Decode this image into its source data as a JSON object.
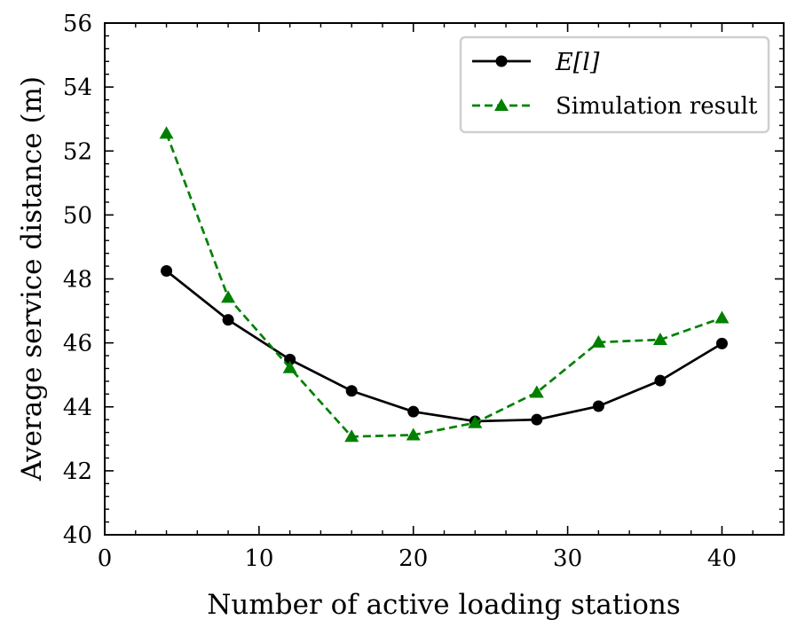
{
  "chart_data": {
    "type": "line",
    "title": "",
    "xlabel": "Number of active loading stations",
    "ylabel": "Average service distance (m)",
    "xlim": [
      0,
      44
    ],
    "ylim": [
      40,
      56
    ],
    "x_ticks": [
      0,
      10,
      20,
      30,
      40
    ],
    "y_ticks": [
      40,
      42,
      44,
      46,
      48,
      50,
      52,
      54,
      56
    ],
    "x_tick_labels": [
      "0",
      "10",
      "20",
      "30",
      "40"
    ],
    "y_tick_labels": [
      "40",
      "42",
      "44",
      "46",
      "48",
      "50",
      "52",
      "54",
      "56"
    ],
    "x_minor_step": 2,
    "y_minor_step": 0.4,
    "grid": false,
    "legend_position": "top-right",
    "x": [
      4,
      8,
      12,
      16,
      20,
      24,
      28,
      32,
      36,
      40
    ],
    "series": [
      {
        "name": "E[l]",
        "values": [
          48.25,
          46.72,
          45.48,
          44.5,
          43.85,
          43.55,
          43.6,
          44.02,
          44.82,
          45.98
        ],
        "color": "#000000",
        "line_style": "solid",
        "marker": "circle"
      },
      {
        "name": "Simulation result",
        "values": [
          52.55,
          47.42,
          45.22,
          43.07,
          43.12,
          43.5,
          44.45,
          46.02,
          46.1,
          46.78
        ],
        "color": "#008000",
        "line_style": "dashed",
        "marker": "triangle"
      }
    ]
  }
}
